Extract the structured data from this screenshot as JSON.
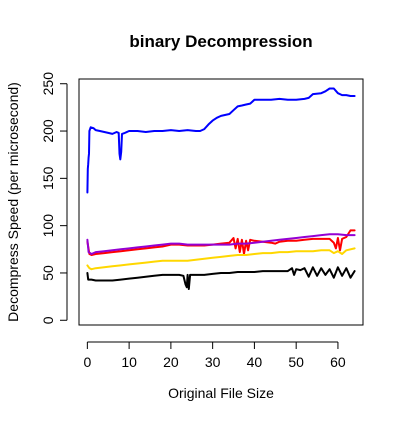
{
  "chart_data": {
    "type": "line",
    "title": "binary Decompression",
    "xlabel": "Original File Size",
    "ylabel": "Decompress Speed (per microsecond)",
    "xlim": [
      -2,
      66
    ],
    "ylim": [
      -5,
      255
    ],
    "x_ticks": [
      0,
      10,
      20,
      30,
      40,
      50,
      60
    ],
    "y_ticks": [
      0,
      50,
      100,
      150,
      200,
      250
    ],
    "grid": false,
    "legend": "none",
    "series": [
      {
        "color": "#0000ff",
        "points": [
          [
            0,
            135
          ],
          [
            0.1,
            160
          ],
          [
            0.2,
            165
          ],
          [
            0.3,
            172
          ],
          [
            0.4,
            176
          ],
          [
            0.5,
            200
          ],
          [
            0.8,
            204
          ],
          [
            1.5,
            203
          ],
          [
            2,
            201
          ],
          [
            3,
            200
          ],
          [
            5,
            198
          ],
          [
            6,
            197
          ],
          [
            7,
            199
          ],
          [
            7.5,
            198
          ],
          [
            7.7,
            176
          ],
          [
            7.9,
            170
          ],
          [
            8.1,
            178
          ],
          [
            8.3,
            197
          ],
          [
            9,
            198
          ],
          [
            10,
            200
          ],
          [
            12,
            200
          ],
          [
            14,
            199
          ],
          [
            16,
            200
          ],
          [
            18,
            200
          ],
          [
            20,
            201
          ],
          [
            22,
            200
          ],
          [
            24,
            201
          ],
          [
            26,
            200
          ],
          [
            27,
            200
          ],
          [
            28,
            202
          ],
          [
            29,
            207
          ],
          [
            30,
            211
          ],
          [
            31,
            214
          ],
          [
            32,
            216
          ],
          [
            34,
            218
          ],
          [
            35,
            222
          ],
          [
            36,
            226
          ],
          [
            37,
            227
          ],
          [
            38,
            228
          ],
          [
            39,
            229
          ],
          [
            40,
            233
          ],
          [
            42,
            233
          ],
          [
            44,
            233
          ],
          [
            46,
            234
          ],
          [
            48,
            233
          ],
          [
            50,
            233
          ],
          [
            52,
            234
          ],
          [
            53,
            235
          ],
          [
            54,
            239
          ],
          [
            56,
            240
          ],
          [
            57,
            242
          ],
          [
            58,
            245
          ],
          [
            59,
            245
          ],
          [
            60,
            240
          ],
          [
            61,
            238
          ],
          [
            62,
            238
          ],
          [
            63,
            237
          ],
          [
            64,
            237
          ]
        ]
      },
      {
        "color": "#ff0000",
        "points": [
          [
            0,
            83
          ],
          [
            0.5,
            70
          ],
          [
            1,
            69
          ],
          [
            2,
            70
          ],
          [
            4,
            71
          ],
          [
            6,
            72
          ],
          [
            8,
            73
          ],
          [
            10,
            74
          ],
          [
            12,
            75
          ],
          [
            14,
            76
          ],
          [
            16,
            77
          ],
          [
            18,
            78
          ],
          [
            20,
            80
          ],
          [
            22,
            80
          ],
          [
            24,
            79
          ],
          [
            26,
            79
          ],
          [
            28,
            79
          ],
          [
            30,
            80
          ],
          [
            32,
            81
          ],
          [
            34,
            82
          ],
          [
            35,
            87
          ],
          [
            35.5,
            76
          ],
          [
            36,
            86
          ],
          [
            36.5,
            72
          ],
          [
            37,
            85
          ],
          [
            37.5,
            70
          ],
          [
            38,
            84
          ],
          [
            38.5,
            74
          ],
          [
            39,
            85
          ],
          [
            40,
            84
          ],
          [
            42,
            83
          ],
          [
            44,
            82
          ],
          [
            45,
            81
          ],
          [
            46,
            83
          ],
          [
            48,
            84
          ],
          [
            50,
            84
          ],
          [
            52,
            85
          ],
          [
            54,
            86
          ],
          [
            56,
            86
          ],
          [
            58,
            86
          ],
          [
            59,
            82
          ],
          [
            59.5,
            76
          ],
          [
            60,
            87
          ],
          [
            60.5,
            74
          ],
          [
            61,
            86
          ],
          [
            62,
            88
          ],
          [
            63,
            95
          ],
          [
            64,
            95
          ]
        ]
      },
      {
        "color": "#9400d3",
        "points": [
          [
            0,
            85
          ],
          [
            0.3,
            72
          ],
          [
            1,
            70
          ],
          [
            2,
            72
          ],
          [
            4,
            73
          ],
          [
            6,
            74
          ],
          [
            8,
            75
          ],
          [
            10,
            76
          ],
          [
            12,
            77
          ],
          [
            14,
            78
          ],
          [
            16,
            79
          ],
          [
            18,
            80
          ],
          [
            20,
            81
          ],
          [
            22,
            81
          ],
          [
            24,
            80
          ],
          [
            26,
            80
          ],
          [
            28,
            80
          ],
          [
            30,
            80
          ],
          [
            32,
            80
          ],
          [
            34,
            80
          ],
          [
            36,
            81
          ],
          [
            38,
            81
          ],
          [
            40,
            82
          ],
          [
            42,
            83
          ],
          [
            44,
            84
          ],
          [
            46,
            85
          ],
          [
            48,
            86
          ],
          [
            50,
            87
          ],
          [
            52,
            88
          ],
          [
            54,
            89
          ],
          [
            56,
            90
          ],
          [
            58,
            91
          ],
          [
            60,
            91
          ],
          [
            62,
            90
          ],
          [
            64,
            90
          ]
        ]
      },
      {
        "color": "#ffd700",
        "points": [
          [
            0,
            58
          ],
          [
            0.5,
            55
          ],
          [
            1,
            54
          ],
          [
            2,
            55
          ],
          [
            4,
            56
          ],
          [
            6,
            57
          ],
          [
            8,
            58
          ],
          [
            10,
            59
          ],
          [
            12,
            60
          ],
          [
            14,
            61
          ],
          [
            16,
            62
          ],
          [
            18,
            63
          ],
          [
            20,
            63
          ],
          [
            22,
            63
          ],
          [
            24,
            63
          ],
          [
            26,
            64
          ],
          [
            28,
            65
          ],
          [
            30,
            66
          ],
          [
            32,
            67
          ],
          [
            34,
            68
          ],
          [
            36,
            69
          ],
          [
            38,
            69
          ],
          [
            40,
            70
          ],
          [
            42,
            71
          ],
          [
            44,
            71
          ],
          [
            46,
            72
          ],
          [
            48,
            72
          ],
          [
            50,
            73
          ],
          [
            52,
            73
          ],
          [
            54,
            73
          ],
          [
            56,
            74
          ],
          [
            58,
            74
          ],
          [
            59,
            71
          ],
          [
            60,
            73
          ],
          [
            61,
            70
          ],
          [
            62,
            74
          ],
          [
            64,
            76
          ]
        ]
      },
      {
        "color": "#000000",
        "points": [
          [
            0,
            50
          ],
          [
            0.2,
            43
          ],
          [
            1,
            43
          ],
          [
            2,
            42
          ],
          [
            4,
            42
          ],
          [
            6,
            42
          ],
          [
            8,
            43
          ],
          [
            10,
            44
          ],
          [
            12,
            45
          ],
          [
            14,
            46
          ],
          [
            16,
            47
          ],
          [
            18,
            48
          ],
          [
            20,
            48
          ],
          [
            22,
            48
          ],
          [
            23,
            47
          ],
          [
            23.5,
            38
          ],
          [
            23.8,
            35
          ],
          [
            24,
            48
          ],
          [
            24.3,
            33
          ],
          [
            24.6,
            48
          ],
          [
            26,
            48
          ],
          [
            28,
            48
          ],
          [
            30,
            49
          ],
          [
            32,
            50
          ],
          [
            34,
            50
          ],
          [
            36,
            51
          ],
          [
            38,
            51
          ],
          [
            40,
            51
          ],
          [
            42,
            52
          ],
          [
            44,
            52
          ],
          [
            46,
            52
          ],
          [
            48,
            52
          ],
          [
            49,
            55
          ],
          [
            49.5,
            48
          ],
          [
            50,
            54
          ],
          [
            51,
            53
          ],
          [
            52,
            55
          ],
          [
            53,
            46
          ],
          [
            54,
            56
          ],
          [
            55,
            47
          ],
          [
            56,
            55
          ],
          [
            57,
            48
          ],
          [
            58,
            54
          ],
          [
            59,
            45
          ],
          [
            60,
            56
          ],
          [
            61,
            47
          ],
          [
            62,
            55
          ],
          [
            63,
            45
          ],
          [
            64,
            52
          ]
        ]
      }
    ]
  }
}
